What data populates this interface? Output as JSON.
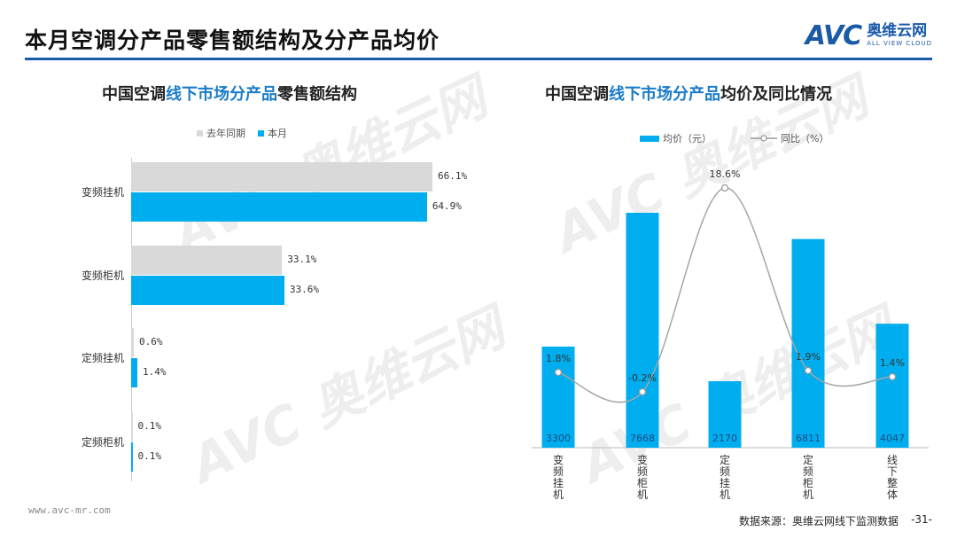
{
  "page": {
    "title": "本月空调分产品零售额结构及分产品均价",
    "logo_avc": "AVC",
    "logo_cn": "奥维云网",
    "logo_en": "ALL VIEW CLOUD",
    "footer_left": "www.avc-mr.com",
    "source": "数据来源：奥维云网线下监测数据",
    "page_number": "-31-",
    "watermark_avc": "AVC",
    "watermark_cn": "奥维云网",
    "watermark_en": "ALL VIEW CLOUD"
  },
  "colors": {
    "blue": "#00AEEF",
    "gray": "#D9D9D9",
    "brand": "#1A5AA8"
  },
  "chart_data": [
    {
      "type": "bar",
      "orientation": "horizontal",
      "title_prefix": "中国空调",
      "title_highlight": "线下市场分产品",
      "title_suffix": "零售额结构",
      "categories": [
        "变频挂机",
        "变频柜机",
        "定频挂机",
        "定频柜机"
      ],
      "series": [
        {
          "name": "去年同期",
          "values": [
            66.1,
            33.1,
            0.6,
            0.1
          ],
          "labels": [
            "66.1%",
            "33.1%",
            "0.6%",
            "0.1%"
          ]
        },
        {
          "name": "本月",
          "values": [
            64.9,
            33.6,
            1.4,
            0.1
          ],
          "labels": [
            "64.9%",
            "33.6%",
            "1.4%",
            "0.1%"
          ]
        }
      ],
      "unit": "%",
      "legend": "top"
    },
    {
      "type": "bar+line",
      "title_prefix": "中国空调",
      "title_highlight": "线下市场分产品",
      "title_suffix": "均价及同比情况",
      "categories": [
        "变频挂机",
        "变频柜机",
        "定频挂机",
        "定频柜机",
        "线下整体"
      ],
      "bar_series": {
        "name": "均价（元）",
        "values": [
          3300,
          7668,
          2170,
          6811,
          4047
        ]
      },
      "line_series": {
        "name": "同比（%）",
        "values": [
          1.8,
          -0.2,
          18.6,
          1.9,
          1.4
        ],
        "labels": [
          "1.8%",
          "-0.2%",
          "18.6%",
          "1.9%",
          "1.4%"
        ]
      },
      "legend": "top"
    }
  ]
}
